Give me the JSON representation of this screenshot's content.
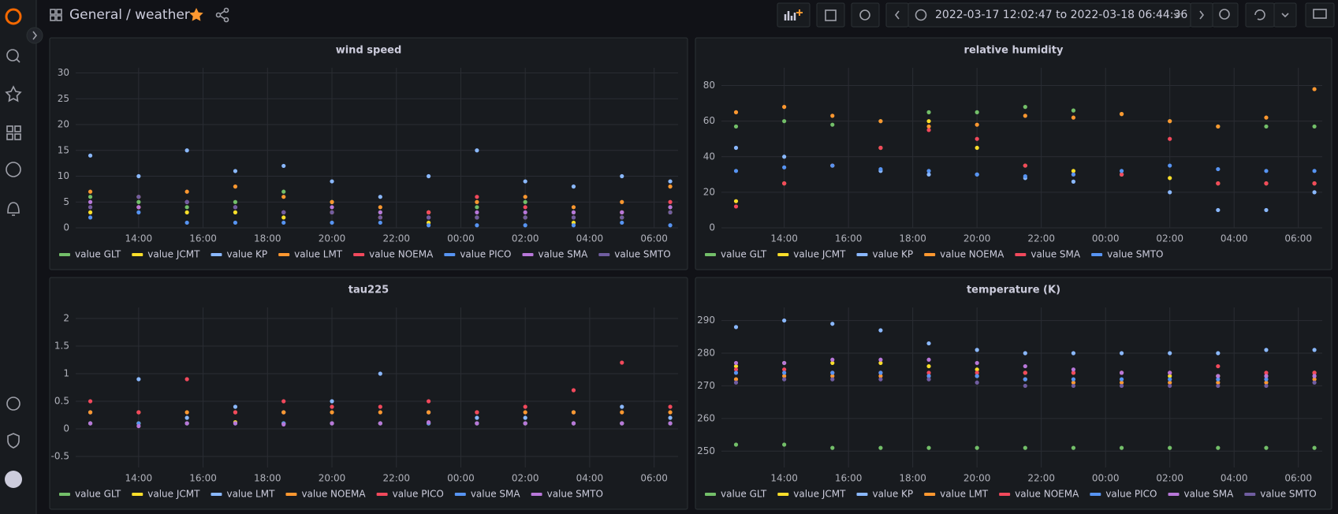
{
  "header": {
    "folder": "General",
    "dashboard": "/ weather",
    "time_range": "2022-03-17 12:02:47 to 2022-03-18 06:44:36"
  },
  "chart_data": [
    {
      "type": "scatter",
      "title": "wind speed",
      "x": [
        12.5,
        14,
        15.5,
        17,
        18.5,
        20,
        21.5,
        23,
        24.5,
        26,
        27.5,
        29,
        30.5
      ],
      "xlim": [
        12.046,
        30.743
      ],
      "xticks": [
        {
          "value": 14,
          "label": "14:00"
        },
        {
          "value": 16,
          "label": "16:00"
        },
        {
          "value": 18,
          "label": "18:00"
        },
        {
          "value": 20,
          "label": "20:00"
        },
        {
          "value": 22,
          "label": "22:00"
        },
        {
          "value": 24,
          "label": "00:00"
        },
        {
          "value": 26,
          "label": "02:00"
        },
        {
          "value": 28,
          "label": "04:00"
        },
        {
          "value": 30,
          "label": "06:00"
        }
      ],
      "ylim": [
        0,
        31
      ],
      "yticks": [
        0,
        5,
        10,
        15,
        20,
        25,
        30
      ],
      "grid": true,
      "series": [
        {
          "name": "value GLT",
          "color": "#73bf69",
          "values": [
            6,
            5,
            4,
            5,
            7,
            5,
            3,
            3,
            4,
            5,
            3,
            3,
            4
          ]
        },
        {
          "name": "value JCMT",
          "color": "#fade2a",
          "values": [
            3,
            4,
            3,
            3,
            2,
            3,
            2,
            1,
            2,
            2,
            1,
            2,
            3
          ]
        },
        {
          "name": "value KP",
          "color": "#8ab8ff",
          "values": [
            14,
            10,
            15,
            11,
            12,
            9,
            6,
            10,
            15,
            9,
            8,
            10,
            9
          ]
        },
        {
          "name": "value LMT",
          "color": "#ff9830",
          "values": [
            7,
            6,
            7,
            8,
            6,
            5,
            4,
            3,
            5,
            6,
            4,
            5,
            8
          ]
        },
        {
          "name": "value NOEMA",
          "color": "#f2495c",
          "values": [
            4,
            4,
            5,
            4,
            3,
            3,
            2,
            3,
            6,
            4,
            2,
            3,
            5
          ]
        },
        {
          "name": "value PICO",
          "color": "#5794f2",
          "values": [
            2,
            3,
            1,
            1,
            1,
            1,
            1,
            0.5,
            0.5,
            0.5,
            0.5,
            1,
            0.5
          ]
        },
        {
          "name": "value SMA",
          "color": "#b877d9",
          "values": [
            5,
            4,
            5,
            4,
            3,
            4,
            3,
            2,
            3,
            3,
            3,
            3,
            4
          ]
        },
        {
          "name": "value SMTO",
          "color": "#705da0",
          "values": [
            4,
            6,
            5,
            4,
            3,
            3,
            2,
            2,
            2,
            2,
            2,
            2,
            3
          ]
        }
      ]
    },
    {
      "type": "scatter",
      "title": "relative humidity",
      "x": [
        12.5,
        14,
        15.5,
        17,
        18.5,
        20,
        21.5,
        23,
        24.5,
        26,
        27.5,
        29,
        30.5
      ],
      "xlim": [
        12.046,
        30.743
      ],
      "xticks": [
        {
          "value": 14,
          "label": "14:00"
        },
        {
          "value": 16,
          "label": "16:00"
        },
        {
          "value": 18,
          "label": "18:00"
        },
        {
          "value": 20,
          "label": "20:00"
        },
        {
          "value": 22,
          "label": "22:00"
        },
        {
          "value": 24,
          "label": "00:00"
        },
        {
          "value": 26,
          "label": "02:00"
        },
        {
          "value": 28,
          "label": "04:00"
        },
        {
          "value": 30,
          "label": "06:00"
        }
      ],
      "ylim": [
        0,
        90
      ],
      "yticks": [
        0,
        20,
        40,
        60,
        80
      ],
      "grid": true,
      "series": [
        {
          "name": "value GLT",
          "color": "#73bf69",
          "values": [
            57,
            60,
            58,
            60,
            65,
            65,
            68,
            66,
            64,
            60,
            57,
            57,
            57
          ]
        },
        {
          "name": "value JCMT",
          "color": "#fade2a",
          "values": [
            15,
            25,
            35,
            45,
            60,
            45,
            35,
            32,
            30,
            28,
            25,
            25,
            25
          ]
        },
        {
          "name": "value KP",
          "color": "#8ab8ff",
          "values": [
            45,
            40,
            35,
            32,
            30,
            30,
            28,
            26,
            30,
            20,
            10,
            10,
            20
          ]
        },
        {
          "name": "value NOEMA",
          "color": "#ff9830",
          "values": [
            65,
            68,
            63,
            60,
            57,
            58,
            63,
            62,
            64,
            60,
            57,
            62,
            78
          ]
        },
        {
          "name": "value SMA",
          "color": "#f2495c",
          "values": [
            12,
            25,
            35,
            45,
            55,
            50,
            35,
            30,
            30,
            50,
            25,
            25,
            25
          ]
        },
        {
          "name": "value SMTO",
          "color": "#5794f2",
          "values": [
            32,
            34,
            35,
            33,
            32,
            30,
            29,
            30,
            32,
            35,
            33,
            32,
            32
          ]
        }
      ]
    },
    {
      "type": "scatter",
      "title": "tau225",
      "x": [
        12.5,
        14,
        15.5,
        17,
        18.5,
        20,
        21.5,
        23,
        24.5,
        26,
        27.5,
        29,
        30.5
      ],
      "xlim": [
        12.046,
        30.743
      ],
      "xticks": [
        {
          "value": 14,
          "label": "14:00"
        },
        {
          "value": 16,
          "label": "16:00"
        },
        {
          "value": 18,
          "label": "18:00"
        },
        {
          "value": 20,
          "label": "20:00"
        },
        {
          "value": 22,
          "label": "22:00"
        },
        {
          "value": 24,
          "label": "00:00"
        },
        {
          "value": 26,
          "label": "02:00"
        },
        {
          "value": 28,
          "label": "04:00"
        },
        {
          "value": 30,
          "label": "06:00"
        }
      ],
      "ylim": [
        -0.7,
        2.2
      ],
      "yticks": [
        -0.5,
        0,
        0.5,
        1,
        1.5,
        2
      ],
      "grid": true,
      "series": [
        {
          "name": "value GLT",
          "color": "#73bf69",
          "values": [
            0.1,
            0.1,
            0.1,
            0.1,
            0.1,
            0.1,
            0.1,
            0.1,
            0.1,
            0.1,
            0.1,
            0.1,
            0.1
          ]
        },
        {
          "name": "value JCMT",
          "color": "#fade2a",
          "values": [
            0.1,
            0.1,
            0.1,
            0.12,
            0.1,
            0.1,
            0.1,
            0.1,
            0.1,
            0.1,
            0.1,
            0.1,
            0.1
          ]
        },
        {
          "name": "value LMT",
          "color": "#8ab8ff",
          "values": [
            0.3,
            0.9,
            0.2,
            0.4,
            0.3,
            0.5,
            1.0,
            0.3,
            0.2,
            0.2,
            0.3,
            0.4,
            0.2
          ]
        },
        {
          "name": "value NOEMA",
          "color": "#ff9830",
          "values": [
            0.3,
            0.3,
            0.3,
            0.3,
            0.3,
            0.3,
            0.3,
            0.3,
            0.3,
            0.3,
            0.3,
            0.3,
            0.3
          ]
        },
        {
          "name": "value PICO",
          "color": "#f2495c",
          "values": [
            0.5,
            0.3,
            0.9,
            0.3,
            0.5,
            0.4,
            0.4,
            0.5,
            0.3,
            0.4,
            0.7,
            1.2,
            0.4
          ]
        },
        {
          "name": "value SMA",
          "color": "#5794f2",
          "values": [
            0.1,
            0.1,
            0.1,
            0.1,
            0.1,
            0.1,
            0.1,
            0.1,
            0.1,
            0.1,
            0.1,
            0.1,
            0.1
          ]
        },
        {
          "name": "value SMTO",
          "color": "#b877d9",
          "values": [
            0.1,
            0.05,
            0.1,
            0.1,
            0.08,
            0.1,
            0.1,
            0.12,
            0.1,
            0.1,
            0.1,
            0.1,
            0.1
          ]
        }
      ]
    },
    {
      "type": "scatter",
      "title": "temperature (K)",
      "x": [
        12.5,
        14,
        15.5,
        17,
        18.5,
        20,
        21.5,
        23,
        24.5,
        26,
        27.5,
        29,
        30.5
      ],
      "xlim": [
        12.046,
        30.743
      ],
      "xticks": [
        {
          "value": 14,
          "label": "14:00"
        },
        {
          "value": 16,
          "label": "16:00"
        },
        {
          "value": 18,
          "label": "18:00"
        },
        {
          "value": 20,
          "label": "20:00"
        },
        {
          "value": 22,
          "label": "22:00"
        },
        {
          "value": 24,
          "label": "00:00"
        },
        {
          "value": 26,
          "label": "02:00"
        },
        {
          "value": 28,
          "label": "04:00"
        },
        {
          "value": 30,
          "label": "06:00"
        }
      ],
      "ylim": [
        245,
        294
      ],
      "yticks": [
        250,
        260,
        270,
        280,
        290
      ],
      "grid": true,
      "series": [
        {
          "name": "value GLT",
          "color": "#73bf69",
          "values": [
            252,
            252,
            251,
            251,
            251,
            251,
            251,
            251,
            251,
            251,
            251,
            251,
            251
          ]
        },
        {
          "name": "value JCMT",
          "color": "#fade2a",
          "values": [
            276,
            277,
            277,
            277,
            276,
            275,
            274,
            274,
            274,
            273,
            273,
            273,
            274
          ]
        },
        {
          "name": "value KP",
          "color": "#8ab8ff",
          "values": [
            288,
            290,
            289,
            287,
            283,
            281,
            280,
            280,
            280,
            280,
            280,
            281,
            281
          ]
        },
        {
          "name": "value LMT",
          "color": "#ff9830",
          "values": [
            272,
            273,
            273,
            273,
            273,
            273,
            272,
            271,
            271,
            271,
            271,
            271,
            272
          ]
        },
        {
          "name": "value NOEMA",
          "color": "#f2495c",
          "values": [
            275,
            275,
            274,
            274,
            274,
            274,
            274,
            274,
            274,
            274,
            276,
            274,
            274
          ]
        },
        {
          "name": "value PICO",
          "color": "#5794f2",
          "values": [
            274,
            274,
            274,
            274,
            273,
            273,
            272,
            272,
            272,
            272,
            272,
            272,
            273
          ]
        },
        {
          "name": "value SMA",
          "color": "#b877d9",
          "values": [
            277,
            277,
            278,
            278,
            278,
            277,
            276,
            275,
            274,
            274,
            273,
            273,
            273
          ]
        },
        {
          "name": "value SMTO",
          "color": "#705da0",
          "values": [
            271,
            272,
            272,
            272,
            272,
            271,
            270,
            270,
            270,
            270,
            270,
            270,
            271
          ]
        }
      ]
    }
  ]
}
